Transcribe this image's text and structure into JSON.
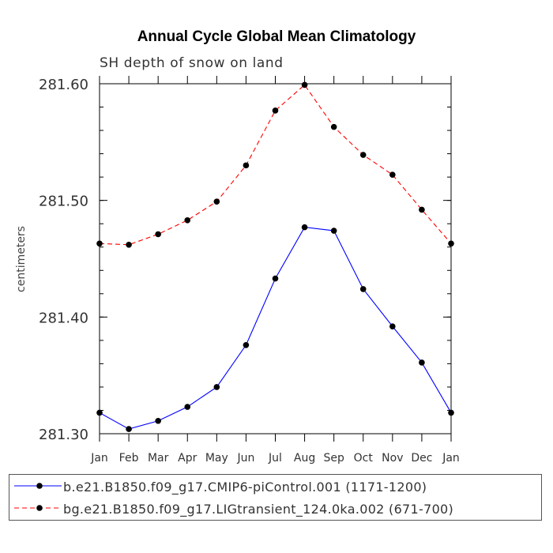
{
  "chart_data": {
    "type": "line",
    "title": "Annual Cycle Global Mean Climatology",
    "subtitle": "SH depth of snow on land",
    "xlabel": "",
    "ylabel": "centimeters",
    "categories": [
      "Jan",
      "Feb",
      "Mar",
      "Apr",
      "May",
      "Jun",
      "Jul",
      "Aug",
      "Sep",
      "Oct",
      "Nov",
      "Dec",
      "Jan"
    ],
    "ylim": [
      281.3,
      281.6
    ],
    "yticks": [
      281.3,
      281.4,
      281.5,
      281.6
    ],
    "ytick_labels": [
      "281.30",
      "281.40",
      "281.50",
      "281.60"
    ],
    "y_minor_step": 0.02,
    "grid": false,
    "legend_position": "bottom",
    "series": [
      {
        "name": "b.e21.B1850.f09_g17.CMIP6-piControl.001 (1171-1200)",
        "color": "#0000ff",
        "line_style": "solid",
        "marker": "circle",
        "values": [
          281.318,
          281.304,
          281.311,
          281.323,
          281.34,
          281.376,
          281.433,
          281.477,
          281.474,
          281.424,
          281.392,
          281.361,
          281.318
        ]
      },
      {
        "name": "bg.e21.B1850.f09_g17.LIGtransient_124.0ka.002 (671-700)",
        "color": "#ff0000",
        "line_style": "dashed",
        "marker": "circle",
        "values": [
          281.463,
          281.462,
          281.471,
          281.483,
          281.499,
          281.53,
          281.577,
          281.599,
          281.563,
          281.539,
          281.522,
          281.492,
          281.463
        ]
      }
    ]
  }
}
